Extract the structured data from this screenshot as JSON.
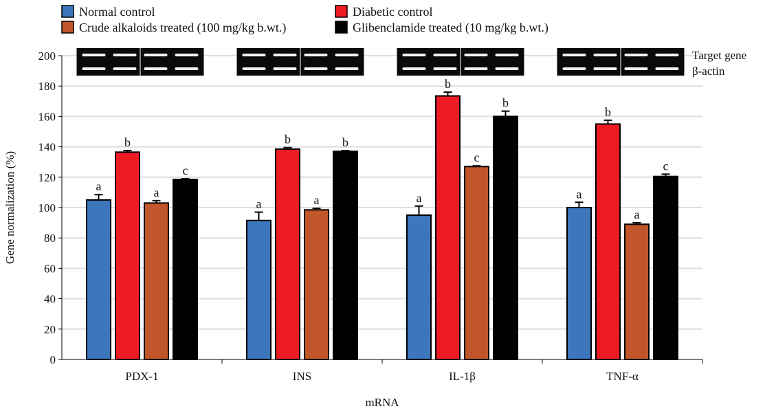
{
  "chart_data": {
    "type": "bar",
    "xlabel": "mRNA",
    "ylabel": "Gene normalization (%)",
    "ylim": [
      0,
      200
    ],
    "yticks": [
      0,
      20,
      40,
      60,
      80,
      100,
      120,
      140,
      160,
      180,
      200
    ],
    "grid": true,
    "legend_placement": "top",
    "categories": [
      "PDX-1",
      "INS",
      "IL-1β",
      "TNF-α"
    ],
    "series": [
      {
        "name": "Normal control",
        "color": "#3d76bb",
        "values": [
          105,
          91.5,
          95,
          100
        ],
        "errors": [
          3.5,
          5.5,
          6,
          3.5
        ],
        "letters": [
          "a",
          "a",
          "a",
          "a"
        ]
      },
      {
        "name": "Diabetic control",
        "color": "#ed1c24",
        "values": [
          136.5,
          138.5,
          173.5,
          155
        ],
        "errors": [
          1,
          1,
          2.5,
          2.5
        ],
        "letters": [
          "b",
          "b",
          "b",
          "b"
        ]
      },
      {
        "name": "Crude alkaloids treated (100 mg/kg b.wt.)",
        "color": "#c1562a",
        "values": [
          103,
          98.5,
          127,
          89
        ],
        "errors": [
          1.5,
          1,
          0.5,
          1
        ],
        "letters": [
          "a",
          "a",
          "c",
          "a"
        ]
      },
      {
        "name": "Glibenclamide treated (10 mg/kg b.wt.)",
        "color": "#000000",
        "values": [
          118.5,
          137,
          160,
          120.5
        ],
        "errors": [
          0.5,
          0.5,
          3.5,
          1.5
        ],
        "letters": [
          "c",
          "b",
          "b",
          "c"
        ]
      }
    ],
    "gel_labels": [
      "Target gene",
      "β-actin"
    ]
  }
}
